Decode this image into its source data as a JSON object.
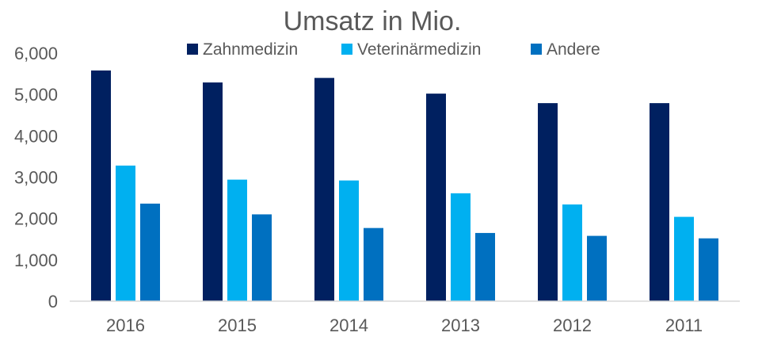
{
  "chart_data": {
    "type": "bar",
    "title": "Umsatz in Mio.",
    "xlabel": "",
    "ylabel": "",
    "categories": [
      "2016",
      "2015",
      "2014",
      "2013",
      "2012",
      "2011"
    ],
    "series": [
      {
        "name": "Zahnmedizin",
        "color": "#002060",
        "values": [
          5580,
          5290,
          5400,
          5020,
          4790,
          4790
        ]
      },
      {
        "name": "Veterinärmedizin",
        "color": "#00B0F0",
        "values": [
          3280,
          2940,
          2920,
          2610,
          2340,
          2040
        ]
      },
      {
        "name": "Andere",
        "color": "#0070C0",
        "values": [
          2360,
          2100,
          1770,
          1650,
          1580,
          1520
        ]
      }
    ],
    "yticks": [
      "0",
      "1,000",
      "2,000",
      "3,000",
      "4,000",
      "5,000",
      "6,000"
    ],
    "ylim": [
      0,
      6000
    ],
    "grid": false,
    "legend_position": "top"
  }
}
